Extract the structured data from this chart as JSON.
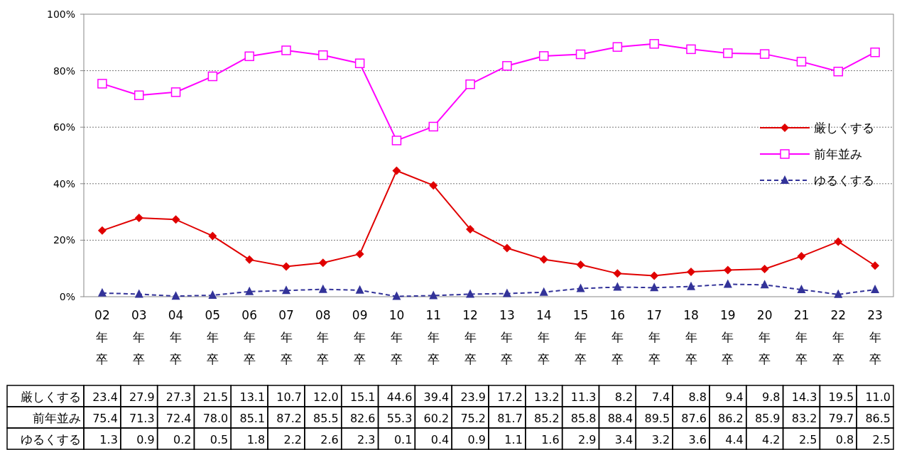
{
  "chart_data": {
    "type": "line",
    "categories": [
      "02年卒",
      "03年卒",
      "04年卒",
      "05年卒",
      "06年卒",
      "07年卒",
      "08年卒",
      "09年卒",
      "10年卒",
      "11年卒",
      "12年卒",
      "13年卒",
      "14年卒",
      "15年卒",
      "16年卒",
      "17年卒",
      "18年卒",
      "19年卒",
      "20年卒",
      "21年卒",
      "22年卒",
      "23年卒"
    ],
    "series": [
      {
        "name": "厳しくする",
        "color": "#e00000",
        "marker": "diamond",
        "line_style": "solid",
        "values": [
          23.4,
          27.9,
          27.3,
          21.5,
          13.1,
          10.7,
          12.0,
          15.1,
          44.6,
          39.4,
          23.9,
          17.2,
          13.2,
          11.3,
          8.2,
          7.4,
          8.8,
          9.4,
          9.8,
          14.3,
          19.5,
          11.0
        ],
        "value_labels": [
          "23.4",
          "27.9",
          "27.3",
          "21.5",
          "13.1",
          "10.7",
          "12.0",
          "15.1",
          "44.6",
          "39.4",
          "23.9",
          "17.2",
          "13.2",
          "11.3",
          "8.2",
          "7.4",
          "8.8",
          "9.4",
          "9.8",
          "14.3",
          "19.5",
          "11.0"
        ]
      },
      {
        "name": "前年並み",
        "color": "#ff00ff",
        "marker": "square",
        "line_style": "solid",
        "values": [
          75.4,
          71.3,
          72.4,
          78.0,
          85.1,
          87.2,
          85.5,
          82.6,
          55.3,
          60.2,
          75.2,
          81.7,
          85.2,
          85.8,
          88.4,
          89.5,
          87.6,
          86.2,
          85.9,
          83.2,
          79.7,
          86.5
        ],
        "value_labels": [
          "75.4",
          "71.3",
          "72.4",
          "78.0",
          "85.1",
          "87.2",
          "85.5",
          "82.6",
          "55.3",
          "60.2",
          "75.2",
          "81.7",
          "85.2",
          "85.8",
          "88.4",
          "89.5",
          "87.6",
          "86.2",
          "85.9",
          "83.2",
          "79.7",
          "86.5"
        ]
      },
      {
        "name": "ゆるくする",
        "color": "#333399",
        "marker": "triangle",
        "line_style": "dashed",
        "values": [
          1.3,
          0.9,
          0.2,
          0.5,
          1.8,
          2.2,
          2.6,
          2.3,
          0.1,
          0.4,
          0.9,
          1.1,
          1.6,
          2.9,
          3.4,
          3.2,
          3.6,
          4.4,
          4.2,
          2.5,
          0.8,
          2.5
        ],
        "value_labels": [
          "1.3",
          "0.9",
          "0.2",
          "0.5",
          "1.8",
          "2.2",
          "2.6",
          "2.3",
          "0.1",
          "0.4",
          "0.9",
          "1.1",
          "1.6",
          "2.9",
          "3.4",
          "3.2",
          "3.6",
          "4.4",
          "4.2",
          "2.5",
          "0.8",
          "2.5"
        ]
      }
    ],
    "ylim": [
      0,
      100
    ],
    "yticks": [
      {
        "value": 0,
        "label": "0%"
      },
      {
        "value": 20,
        "label": "20%"
      },
      {
        "value": 40,
        "label": "40%"
      },
      {
        "value": 60,
        "label": "60%"
      },
      {
        "value": 80,
        "label": "80%"
      },
      {
        "value": 100,
        "label": "100%"
      }
    ],
    "grid": "y",
    "legend": "right"
  }
}
